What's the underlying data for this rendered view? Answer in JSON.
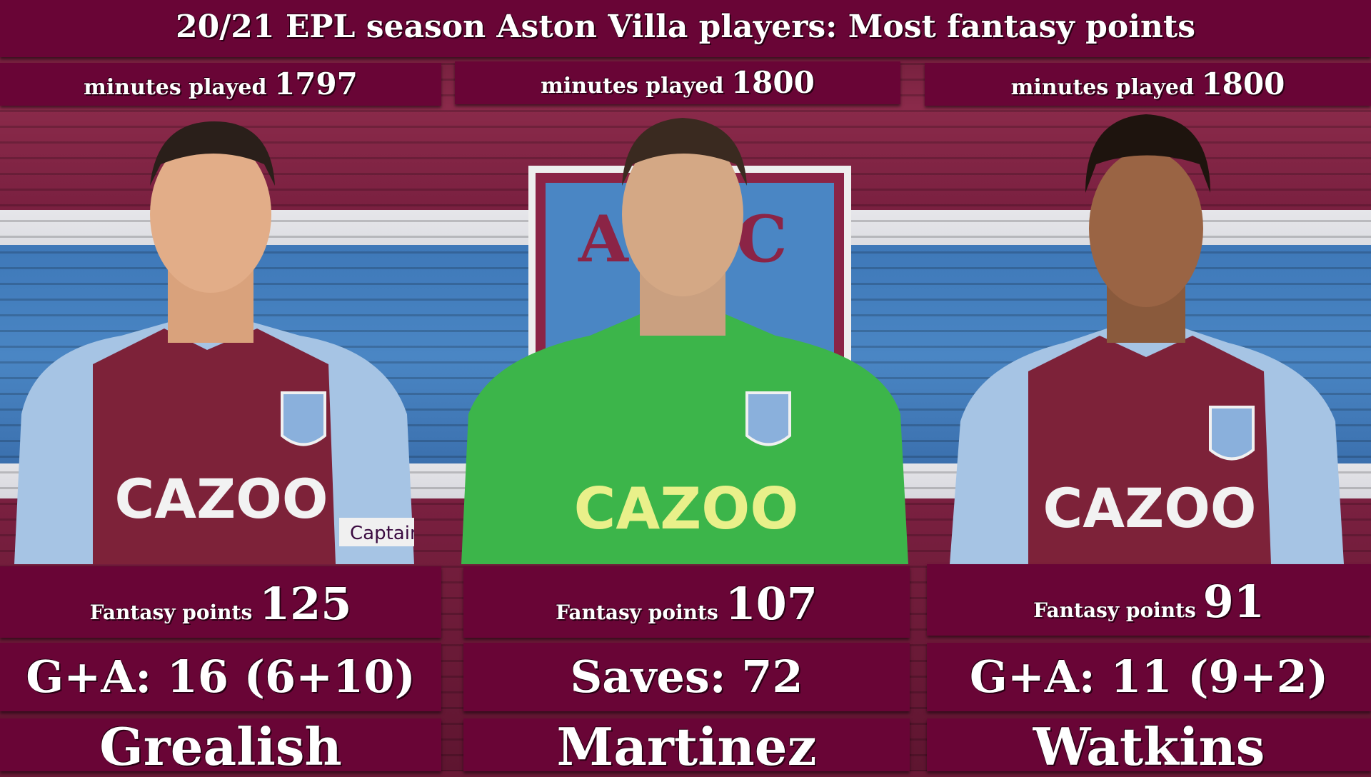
{
  "title": "20/21 EPL season Aston Villa players: Most fantasy points",
  "crest_text": "AVFC",
  "colors": {
    "claret": "#690536",
    "blue": "#4a86c4",
    "keeper_green": "#3cb54a"
  },
  "players": [
    {
      "name": "Grealish",
      "minutes_label": "minutes played",
      "minutes": "1797",
      "fantasy_label": "Fantasy points",
      "fantasy_points": "125",
      "stat": "G+A: 16 (6+10)",
      "sponsor": "CAZOO",
      "shirt": "claret",
      "armband": "Captain"
    },
    {
      "name": "Martinez",
      "minutes_label": "minutes played",
      "minutes": "1800",
      "fantasy_label": "Fantasy points",
      "fantasy_points": "107",
      "stat": "Saves: 72",
      "sponsor": "CAZOO",
      "shirt": "green"
    },
    {
      "name": "Watkins",
      "minutes_label": "minutes played",
      "minutes": "1800",
      "fantasy_label": "Fantasy points",
      "fantasy_points": "91",
      "stat": "G+A: 11 (9+2)",
      "sponsor": "CAZOO",
      "shirt": "claret"
    }
  ]
}
